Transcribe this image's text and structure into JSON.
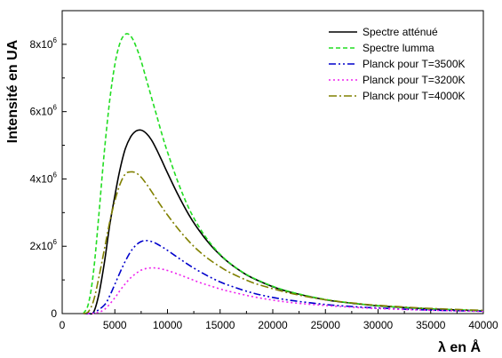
{
  "chart_data": {
    "type": "line",
    "title": "",
    "xlabel": "λ en Å",
    "ylabel": "Intensité en UA",
    "xlim": [
      0,
      40000
    ],
    "ylim": [
      0,
      9000000
    ],
    "x_ticks": [
      0,
      5000,
      10000,
      15000,
      20000,
      25000,
      30000,
      35000,
      40000
    ],
    "x_tick_labels": [
      "0",
      "5000",
      "10000",
      "15000",
      "20000",
      "25000",
      "30000",
      "35000",
      "40000"
    ],
    "y_ticks": [
      0,
      2000000,
      4000000,
      6000000,
      8000000
    ],
    "y_tick_labels": [
      {
        "base": "0",
        "exp": ""
      },
      {
        "base": "2x10",
        "exp": "6"
      },
      {
        "base": "4x10",
        "exp": "6"
      },
      {
        "base": "6x10",
        "exp": "6"
      },
      {
        "base": "8x10",
        "exp": "6"
      }
    ],
    "grid": false,
    "legend_position": "top-right",
    "series": [
      {
        "name": "Spectre atténué",
        "color": "#000000",
        "dash": "solid",
        "x": [
          2000,
          2500,
          3000,
          3500,
          4000,
          4500,
          5000,
          5500,
          6000,
          6500,
          7000,
          7500,
          8000,
          8500,
          9000,
          9500,
          10000,
          11000,
          12000,
          13000,
          14000,
          15000,
          16000,
          17000,
          18000,
          20000,
          22000,
          25000,
          28000,
          30000,
          33000,
          36000,
          40000
        ],
        "values": [
          0,
          0,
          50000,
          600000,
          1500000,
          2600000,
          3500000,
          4300000,
          4900000,
          5250000,
          5420000,
          5450000,
          5350000,
          5150000,
          4850000,
          4520000,
          4180000,
          3530000,
          2950000,
          2470000,
          2070000,
          1740000,
          1470000,
          1250000,
          1070000,
          800000,
          610000,
          410000,
          290000,
          230000,
          170000,
          125000,
          80000
        ]
      },
      {
        "name": "Spectre lumma",
        "color": "#22dd22",
        "dash": "5,3",
        "x": [
          2000,
          2500,
          3000,
          3500,
          4000,
          4500,
          5000,
          5500,
          6000,
          6500,
          7000,
          7500,
          8000,
          8500,
          9000,
          9500,
          10000,
          11000,
          12000,
          13000,
          14000,
          15000,
          16000,
          17000,
          18000,
          20000,
          22000,
          25000,
          28000,
          30000,
          33000,
          36000,
          40000
        ],
        "values": [
          0,
          300000,
          1300000,
          3000000,
          4800000,
          6300000,
          7400000,
          8050000,
          8300000,
          8250000,
          7950000,
          7500000,
          6950000,
          6400000,
          5850000,
          5300000,
          4800000,
          3900000,
          3150000,
          2570000,
          2120000,
          1760000,
          1480000,
          1260000,
          1080000,
          810000,
          620000,
          420000,
          295000,
          235000,
          175000,
          130000,
          85000
        ]
      },
      {
        "name": "Planck pour T=3500K",
        "color": "#0000cc",
        "dash": "8,3,2,3,2,3",
        "x": [
          2000,
          3000,
          4000,
          4500,
          5000,
          5500,
          6000,
          6500,
          7000,
          7500,
          8000,
          8500,
          9000,
          9500,
          10000,
          11000,
          12000,
          13000,
          14000,
          15000,
          16000,
          18000,
          20000,
          22000,
          25000,
          28000,
          30000,
          33000,
          36000,
          40000
        ],
        "values": [
          0,
          30000,
          250000,
          520000,
          870000,
          1230000,
          1560000,
          1840000,
          2030000,
          2140000,
          2170000,
          2140000,
          2070000,
          1980000,
          1880000,
          1660000,
          1450000,
          1260000,
          1090000,
          940000,
          820000,
          620000,
          480000,
          380000,
          270000,
          200000,
          165000,
          125000,
          95000,
          70000
        ]
      },
      {
        "name": "Planck pour T=3200K",
        "color": "#ee22ee",
        "dash": "2,3",
        "x": [
          2000,
          3000,
          4000,
          5000,
          5500,
          6000,
          6500,
          7000,
          7500,
          8000,
          8500,
          9000,
          9500,
          10000,
          11000,
          12000,
          13000,
          14000,
          15000,
          16000,
          18000,
          20000,
          22000,
          25000,
          28000,
          30000,
          33000,
          36000,
          40000
        ],
        "values": [
          0,
          10000,
          120000,
          470000,
          690000,
          890000,
          1060000,
          1190000,
          1290000,
          1340000,
          1360000,
          1350000,
          1320000,
          1280000,
          1170000,
          1050000,
          930000,
          830000,
          730000,
          650000,
          510000,
          400000,
          320000,
          240000,
          180000,
          150000,
          115000,
          90000,
          65000
        ]
      },
      {
        "name": "Planck pour T=4000K",
        "color": "#808000",
        "dash": "9,3,2,3",
        "x": [
          2000,
          2500,
          3000,
          3500,
          4000,
          4500,
          5000,
          5500,
          6000,
          6500,
          7000,
          7500,
          8000,
          8500,
          9000,
          9500,
          10000,
          11000,
          12000,
          13000,
          14000,
          15000,
          16000,
          18000,
          20000,
          22000,
          25000,
          28000,
          30000,
          33000,
          36000,
          40000
        ],
        "values": [
          0,
          60000,
          400000,
          1100000,
          1900000,
          2700000,
          3350000,
          3850000,
          4150000,
          4210000,
          4180000,
          4050000,
          3850000,
          3620000,
          3380000,
          3150000,
          2930000,
          2520000,
          2160000,
          1850000,
          1600000,
          1390000,
          1210000,
          930000,
          740000,
          580000,
          410000,
          300000,
          245000,
          185000,
          140000,
          95000
        ]
      }
    ]
  }
}
